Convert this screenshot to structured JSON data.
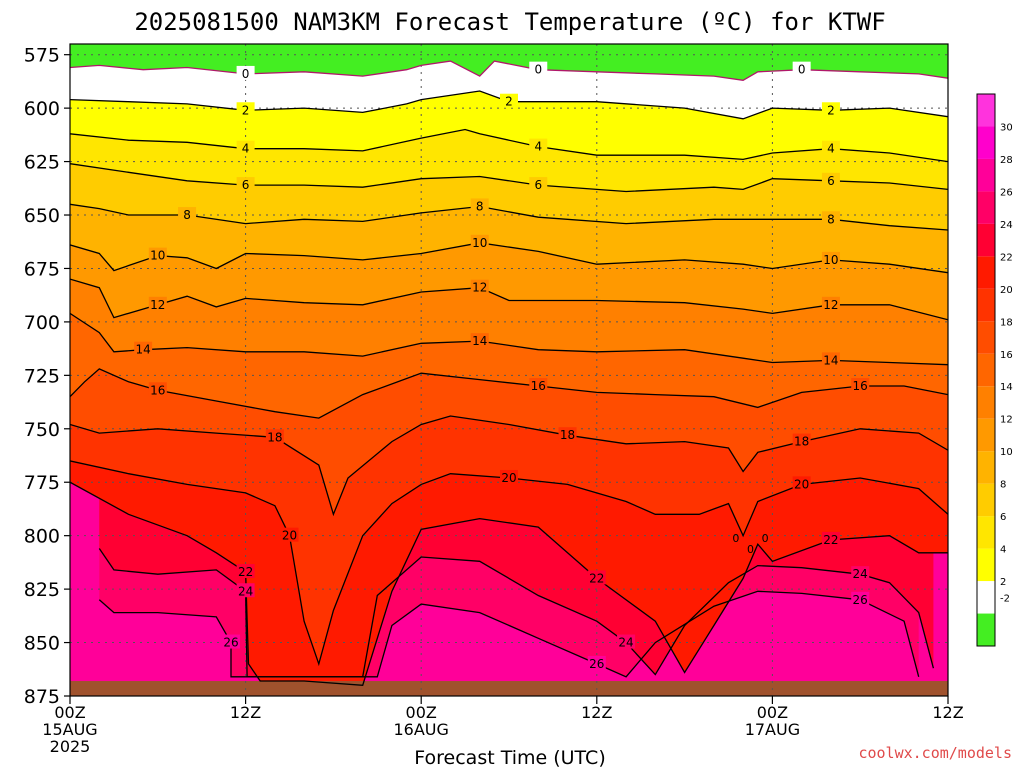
{
  "chart_data": {
    "type": "heatmap",
    "title": "2025081500 NAM3KM Forecast Temperature (ºC) for KTWF",
    "xlabel": "Forecast Time (UTC)",
    "credit": "coolwx.com/models",
    "x_ticks": [
      {
        "hour": 0,
        "lines": [
          "00Z",
          "15AUG",
          "2025"
        ]
      },
      {
        "hour": 12,
        "lines": [
          "12Z"
        ]
      },
      {
        "hour": 24,
        "lines": [
          "00Z",
          "16AUG"
        ]
      },
      {
        "hour": 36,
        "lines": [
          "12Z"
        ]
      },
      {
        "hour": 48,
        "lines": [
          "00Z",
          "17AUG"
        ]
      },
      {
        "hour": 60,
        "lines": [
          "12Z"
        ]
      }
    ],
    "xlim": [
      0,
      60
    ],
    "y_ticks": [
      575,
      600,
      625,
      650,
      675,
      700,
      725,
      750,
      775,
      800,
      825,
      850,
      875
    ],
    "ylim": [
      875,
      570
    ],
    "colorbar": {
      "levels": [
        -2,
        0,
        2,
        4,
        6,
        8,
        10,
        12,
        14,
        16,
        18,
        20,
        22,
        24,
        26,
        28,
        30
      ],
      "tick_labels": [
        "-2",
        "2",
        "4",
        "6",
        "8",
        "10",
        "12",
        "14",
        "16",
        "18",
        "20",
        "22",
        "24",
        "26",
        "28",
        "30"
      ],
      "colors": [
        "#44ee22",
        "#ffffff",
        "#ffff00",
        "#ffe600",
        "#ffcc00",
        "#ffb300",
        "#ff9900",
        "#ff8000",
        "#ff6600",
        "#ff4d00",
        "#ff3300",
        "#ff1a00",
        "#ff0033",
        "#ff0066",
        "#ff0099",
        "#ff00cc",
        "#ff33dd"
      ]
    },
    "isotherms": [
      {
        "temp": 0,
        "label": "0",
        "points": [
          [
            0,
            581
          ],
          [
            2,
            580
          ],
          [
            5,
            582
          ],
          [
            8,
            581
          ],
          [
            12,
            584
          ],
          [
            16,
            583
          ],
          [
            20,
            585
          ],
          [
            23,
            582
          ],
          [
            24,
            580
          ],
          [
            26,
            578
          ],
          [
            28,
            585
          ],
          [
            29,
            578
          ],
          [
            32,
            582
          ],
          [
            36,
            583
          ],
          [
            40,
            584
          ],
          [
            44,
            585
          ],
          [
            46,
            587
          ],
          [
            47,
            583
          ],
          [
            50,
            582
          ],
          [
            54,
            583
          ],
          [
            58,
            584
          ],
          [
            60,
            586
          ]
        ]
      },
      {
        "temp": 2,
        "label": "2",
        "points": [
          [
            0,
            596
          ],
          [
            4,
            597
          ],
          [
            8,
            598
          ],
          [
            12,
            601
          ],
          [
            16,
            600
          ],
          [
            20,
            602
          ],
          [
            23,
            598
          ],
          [
            24,
            596
          ],
          [
            28,
            592
          ],
          [
            30,
            597
          ],
          [
            36,
            597
          ],
          [
            42,
            600
          ],
          [
            46,
            605
          ],
          [
            48,
            600
          ],
          [
            52,
            601
          ],
          [
            56,
            600
          ],
          [
            60,
            604
          ]
        ]
      },
      {
        "temp": 4,
        "label": "4",
        "points": [
          [
            0,
            612
          ],
          [
            4,
            615
          ],
          [
            8,
            616
          ],
          [
            12,
            619
          ],
          [
            16,
            619
          ],
          [
            20,
            620
          ],
          [
            24,
            614
          ],
          [
            27,
            610
          ],
          [
            28,
            612
          ],
          [
            32,
            618
          ],
          [
            36,
            622
          ],
          [
            42,
            622
          ],
          [
            46,
            624
          ],
          [
            48,
            621
          ],
          [
            52,
            619
          ],
          [
            56,
            621
          ],
          [
            60,
            625
          ]
        ]
      },
      {
        "temp": 6,
        "label": "6",
        "points": [
          [
            0,
            626
          ],
          [
            4,
            630
          ],
          [
            8,
            634
          ],
          [
            12,
            636
          ],
          [
            16,
            636
          ],
          [
            20,
            637
          ],
          [
            24,
            633
          ],
          [
            28,
            632
          ],
          [
            32,
            636
          ],
          [
            38,
            639
          ],
          [
            44,
            637
          ],
          [
            46,
            638
          ],
          [
            48,
            633
          ],
          [
            52,
            634
          ],
          [
            56,
            635
          ],
          [
            60,
            638
          ]
        ]
      },
      {
        "temp": 8,
        "label": "8",
        "points": [
          [
            0,
            645
          ],
          [
            2,
            647
          ],
          [
            4,
            650
          ],
          [
            8,
            650
          ],
          [
            12,
            654
          ],
          [
            16,
            652
          ],
          [
            20,
            653
          ],
          [
            24,
            649
          ],
          [
            28,
            646
          ],
          [
            32,
            651
          ],
          [
            38,
            654
          ],
          [
            44,
            652
          ],
          [
            48,
            652
          ],
          [
            52,
            652
          ],
          [
            56,
            655
          ],
          [
            60,
            657
          ]
        ]
      },
      {
        "temp": 10,
        "label": "10",
        "points": [
          [
            0,
            664
          ],
          [
            2,
            668
          ],
          [
            3,
            676
          ],
          [
            6,
            669
          ],
          [
            8,
            670
          ],
          [
            10,
            675
          ],
          [
            12,
            668
          ],
          [
            16,
            669
          ],
          [
            20,
            671
          ],
          [
            24,
            668
          ],
          [
            28,
            663
          ],
          [
            32,
            667
          ],
          [
            36,
            673
          ],
          [
            42,
            671
          ],
          [
            46,
            673
          ],
          [
            48,
            675
          ],
          [
            52,
            671
          ],
          [
            56,
            673
          ],
          [
            60,
            677
          ]
        ]
      },
      {
        "temp": 12,
        "label": "12",
        "points": [
          [
            0,
            680
          ],
          [
            2,
            684
          ],
          [
            3,
            698
          ],
          [
            6,
            692
          ],
          [
            8,
            688
          ],
          [
            10,
            693
          ],
          [
            12,
            689
          ],
          [
            16,
            691
          ],
          [
            20,
            692
          ],
          [
            24,
            686
          ],
          [
            28,
            684
          ],
          [
            30,
            690
          ],
          [
            36,
            690
          ],
          [
            42,
            691
          ],
          [
            46,
            694
          ],
          [
            48,
            696
          ],
          [
            52,
            692
          ],
          [
            56,
            692
          ],
          [
            60,
            699
          ]
        ]
      },
      {
        "temp": 14,
        "label": "14",
        "points": [
          [
            0,
            696
          ],
          [
            2,
            705
          ],
          [
            3,
            714
          ],
          [
            5,
            713
          ],
          [
            8,
            712
          ],
          [
            12,
            714
          ],
          [
            16,
            714
          ],
          [
            20,
            716
          ],
          [
            24,
            710
          ],
          [
            28,
            709
          ],
          [
            32,
            713
          ],
          [
            36,
            714
          ],
          [
            42,
            713
          ],
          [
            46,
            717
          ],
          [
            48,
            719
          ],
          [
            52,
            718
          ],
          [
            56,
            719
          ],
          [
            60,
            720
          ]
        ]
      },
      {
        "temp": 16,
        "label": "16",
        "points": [
          [
            0,
            735
          ],
          [
            1,
            728
          ],
          [
            2,
            722
          ],
          [
            4,
            728
          ],
          [
            6,
            732
          ],
          [
            10,
            737
          ],
          [
            14,
            742
          ],
          [
            17,
            745
          ],
          [
            20,
            734
          ],
          [
            24,
            724
          ],
          [
            28,
            727
          ],
          [
            32,
            730
          ],
          [
            36,
            733
          ],
          [
            40,
            734
          ],
          [
            44,
            735
          ],
          [
            47,
            740
          ],
          [
            50,
            733
          ],
          [
            54,
            730
          ],
          [
            57,
            730
          ],
          [
            60,
            734
          ]
        ]
      },
      {
        "temp": 18,
        "label": "18",
        "points": [
          [
            0,
            748
          ],
          [
            2,
            752
          ],
          [
            6,
            750
          ],
          [
            10,
            752
          ],
          [
            14,
            754
          ],
          [
            17,
            767
          ],
          [
            18,
            790
          ],
          [
            19,
            773
          ],
          [
            22,
            756
          ],
          [
            24,
            748
          ],
          [
            26,
            744
          ],
          [
            30,
            748
          ],
          [
            34,
            753
          ],
          [
            38,
            757
          ],
          [
            42,
            756
          ],
          [
            45,
            759
          ],
          [
            46,
            770
          ],
          [
            47,
            761
          ],
          [
            50,
            756
          ],
          [
            54,
            750
          ],
          [
            58,
            752
          ],
          [
            60,
            760
          ]
        ]
      },
      {
        "temp": 20,
        "label": "20",
        "points": [
          [
            0,
            765
          ],
          [
            4,
            771
          ],
          [
            8,
            776
          ],
          [
            12,
            780
          ],
          [
            14,
            786
          ],
          [
            15,
            800
          ],
          [
            16,
            840
          ],
          [
            17,
            860
          ],
          [
            18,
            835
          ],
          [
            20,
            800
          ],
          [
            22,
            785
          ],
          [
            24,
            776
          ],
          [
            26,
            771
          ],
          [
            30,
            773
          ],
          [
            34,
            776
          ],
          [
            38,
            784
          ],
          [
            40,
            790
          ],
          [
            43,
            790
          ],
          [
            45,
            785
          ],
          [
            46,
            800
          ],
          [
            47,
            784
          ],
          [
            50,
            776
          ],
          [
            54,
            773
          ],
          [
            58,
            778
          ],
          [
            60,
            790
          ]
        ]
      },
      {
        "temp": 22,
        "label": "22",
        "points": [
          [
            0,
            775
          ],
          [
            4,
            790
          ],
          [
            8,
            800
          ],
          [
            10,
            808
          ],
          [
            12,
            817
          ],
          [
            12.2,
            860
          ],
          [
            13,
            868
          ],
          [
            16,
            868
          ],
          [
            20,
            870
          ],
          [
            22,
            826
          ],
          [
            24,
            797
          ],
          [
            28,
            792
          ],
          [
            32,
            796
          ],
          [
            36,
            820
          ],
          [
            40,
            840
          ],
          [
            42,
            864
          ],
          [
            44,
            842
          ],
          [
            46,
            820
          ],
          [
            47,
            804
          ],
          [
            48,
            812
          ],
          [
            52,
            802
          ],
          [
            56,
            800
          ],
          [
            58,
            808
          ],
          [
            60,
            808
          ]
        ]
      },
      {
        "temp": 24,
        "label": "24",
        "points": [
          [
            2,
            806
          ],
          [
            3,
            816
          ],
          [
            6,
            818
          ],
          [
            10,
            816
          ],
          [
            12,
            826
          ],
          [
            12.1,
            866
          ],
          [
            20,
            866
          ],
          [
            21,
            828
          ],
          [
            24,
            810
          ],
          [
            28,
            812
          ],
          [
            32,
            828
          ],
          [
            36,
            840
          ],
          [
            38,
            850
          ],
          [
            40,
            865
          ],
          [
            42,
            842
          ],
          [
            45,
            822
          ],
          [
            47,
            814
          ],
          [
            50,
            815
          ],
          [
            54,
            818
          ],
          [
            56,
            822
          ],
          [
            58,
            836
          ],
          [
            59,
            862
          ]
        ]
      },
      {
        "temp": 26,
        "label": "26",
        "points": [
          [
            2,
            830
          ],
          [
            3,
            836
          ],
          [
            6,
            836
          ],
          [
            10,
            838
          ],
          [
            11,
            850
          ],
          [
            11,
            866
          ],
          [
            21,
            866
          ],
          [
            22,
            842
          ],
          [
            24,
            832
          ],
          [
            28,
            836
          ],
          [
            32,
            848
          ],
          [
            36,
            860
          ],
          [
            38,
            866
          ],
          [
            40,
            850
          ],
          [
            44,
            833
          ],
          [
            47,
            826
          ],
          [
            50,
            827
          ],
          [
            54,
            830
          ],
          [
            57,
            840
          ],
          [
            58,
            866
          ]
        ]
      }
    ],
    "annotations": [
      "0",
      "0",
      "0"
    ]
  }
}
